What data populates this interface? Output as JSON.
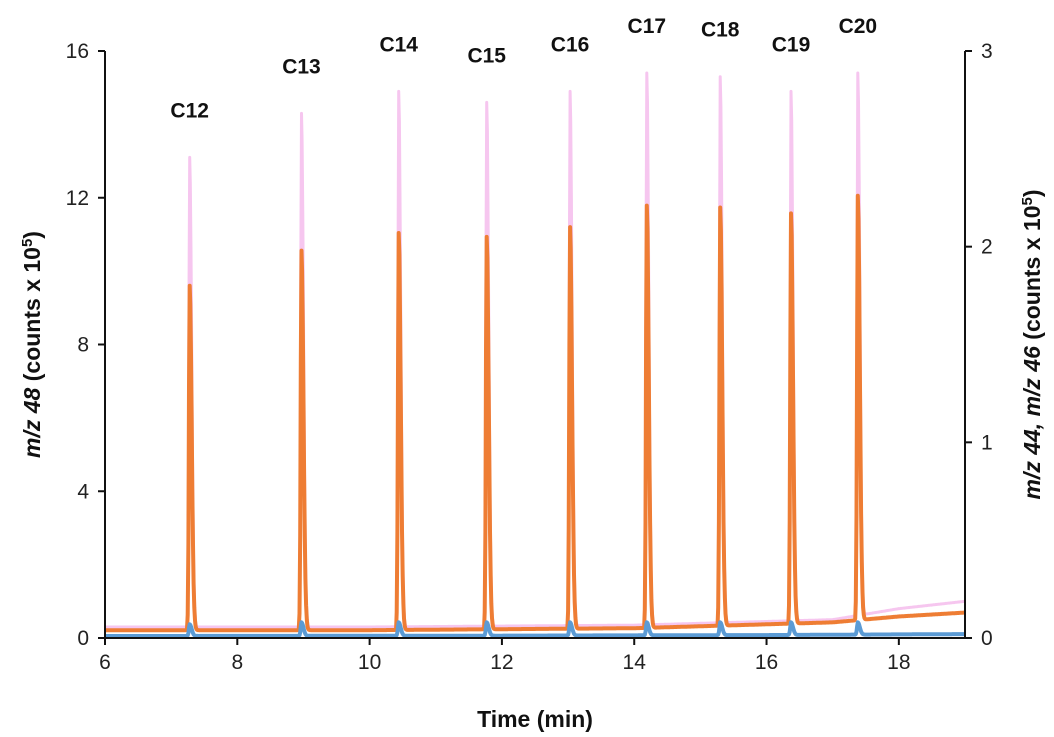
{
  "chart_data": {
    "type": "line",
    "xlabel": "Time (min)",
    "ylabel": {
      "parts": [
        {
          "text": "m/z 48",
          "italic": true
        },
        {
          "text": " (counts x 10",
          "italic": false
        },
        {
          "text": "5",
          "sup": true
        },
        {
          "text": ")",
          "italic": false
        }
      ]
    },
    "y2label": {
      "parts": [
        {
          "text": "m/z 44, m/z 46",
          "italic": true
        },
        {
          "text": " (counts x 10",
          "italic": false
        },
        {
          "text": "5",
          "sup": true
        },
        {
          "text": ")",
          "italic": false
        }
      ]
    },
    "xlim": [
      6,
      19
    ],
    "ylim": [
      0,
      16
    ],
    "y2lim": [
      0,
      3
    ],
    "xticks": [
      6,
      8,
      10,
      12,
      14,
      16,
      18
    ],
    "yticks": [
      0,
      4,
      8,
      12,
      16
    ],
    "y2ticks": [
      0,
      1,
      2,
      3
    ],
    "grid": false,
    "peaks": [
      {
        "label": "C12",
        "time": 7.28,
        "m48": 13.1,
        "m44": 1.8,
        "m46": 0.07
      },
      {
        "label": "C13",
        "time": 8.97,
        "m48": 14.3,
        "m44": 1.98,
        "m46": 0.08
      },
      {
        "label": "C14",
        "time": 10.44,
        "m48": 14.9,
        "m44": 2.07,
        "m46": 0.08
      },
      {
        "label": "C15",
        "time": 11.77,
        "m48": 14.6,
        "m44": 2.05,
        "m46": 0.08
      },
      {
        "label": "C16",
        "time": 13.03,
        "m48": 14.9,
        "m44": 2.1,
        "m46": 0.08
      },
      {
        "label": "C17",
        "time": 14.19,
        "m48": 15.4,
        "m44": 2.21,
        "m46": 0.08
      },
      {
        "label": "C18",
        "time": 15.3,
        "m48": 15.3,
        "m44": 2.2,
        "m46": 0.08
      },
      {
        "label": "C19",
        "time": 16.37,
        "m48": 14.9,
        "m44": 2.17,
        "m46": 0.08
      },
      {
        "label": "C20",
        "time": 17.38,
        "m48": 15.4,
        "m44": 2.26,
        "m46": 0.08
      }
    ],
    "series": [
      {
        "id": "m48",
        "axis": "left",
        "color": "#f6c6ef"
      },
      {
        "id": "m44",
        "axis": "right",
        "color": "#ee7d34"
      },
      {
        "id": "m46",
        "axis": "right",
        "color": "#5b9bd5"
      }
    ],
    "baseline": {
      "m48": [
        [
          6.0,
          0.3
        ],
        [
          10.0,
          0.3
        ],
        [
          14.0,
          0.35
        ],
        [
          16.0,
          0.45
        ],
        [
          17.0,
          0.5
        ],
        [
          18.0,
          0.8
        ],
        [
          19.0,
          1.0
        ]
      ],
      "m44": [
        [
          6.0,
          0.04
        ],
        [
          10.0,
          0.04
        ],
        [
          14.0,
          0.05
        ],
        [
          16.0,
          0.07
        ],
        [
          17.0,
          0.08
        ],
        [
          18.0,
          0.11
        ],
        [
          19.0,
          0.13
        ]
      ],
      "m46": [
        [
          6.0,
          0.01
        ],
        [
          12.0,
          0.012
        ],
        [
          16.0,
          0.015
        ],
        [
          19.0,
          0.02
        ]
      ]
    }
  }
}
